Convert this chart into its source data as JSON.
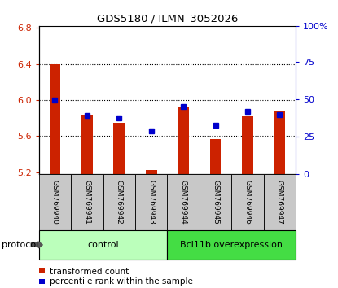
{
  "title": "GDS5180 / ILMN_3052026",
  "samples": [
    "GSM769940",
    "GSM769941",
    "GSM769942",
    "GSM769943",
    "GSM769944",
    "GSM769945",
    "GSM769946",
    "GSM769947"
  ],
  "bar_values": [
    6.4,
    5.84,
    5.75,
    5.23,
    5.92,
    5.57,
    5.83,
    5.88
  ],
  "dot_values": [
    6.0,
    5.83,
    5.8,
    5.66,
    5.93,
    5.72,
    5.87,
    5.84
  ],
  "bar_bottom": 5.18,
  "ylim": [
    5.18,
    6.82
  ],
  "yticks_left": [
    5.2,
    5.6,
    6.0,
    6.4,
    6.8
  ],
  "yticks_right": [
    "0",
    "25",
    "50",
    "75",
    "100%"
  ],
  "yticks_right_pos": [
    5.18,
    5.595,
    6.01,
    6.425,
    6.82
  ],
  "bar_color": "#cc2200",
  "dot_color": "#0000cc",
  "groups": [
    {
      "label": "control",
      "start": 0,
      "end": 3,
      "color": "#bbffbb"
    },
    {
      "label": "Bcl11b overexpression",
      "start": 4,
      "end": 7,
      "color": "#44dd44"
    }
  ],
  "protocol_label": "protocol",
  "legend_bar_label": "transformed count",
  "legend_dot_label": "percentile rank within the sample",
  "background_color": "#ffffff",
  "tick_label_color_left": "#cc2200",
  "tick_label_color_right": "#0000cc",
  "gray_box_color": "#c8c8c8"
}
